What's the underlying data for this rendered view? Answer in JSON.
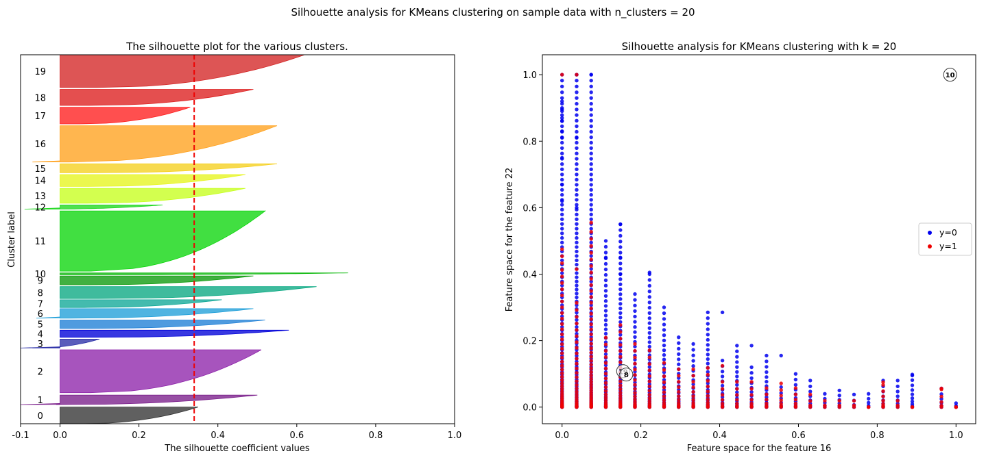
{
  "suptitle": "Silhouette analysis for KMeans clustering on sample data with n_clusters = 20",
  "chart_data": [
    {
      "type": "area",
      "title": "The silhouette plot for the various clusters.",
      "xlabel": "The silhouette coefficient values",
      "ylabel": "Cluster label",
      "xlim": [
        -0.1,
        1.0
      ],
      "xticks": [
        "-0.1",
        "0.0",
        "0.2",
        "0.4",
        "0.6",
        "0.8",
        "1.0"
      ],
      "average_silhouette": 0.34,
      "clusters": [
        {
          "label": "0",
          "y": [
            0,
            28
          ],
          "max": 0.35,
          "min": 0.0,
          "color": "#333333"
        },
        {
          "label": "1",
          "y": [
            32,
            48
          ],
          "max": 0.5,
          "min": -0.1,
          "color": "#7a1d8a"
        },
        {
          "label": "2",
          "y": [
            52,
            124
          ],
          "max": 0.51,
          "min": 0.0,
          "color": "#8e24aa"
        },
        {
          "label": "3",
          "y": [
            127,
            142
          ],
          "max": 0.1,
          "min": -0.1,
          "color": "#2b2fa8"
        },
        {
          "label": "4",
          "y": [
            145,
            157
          ],
          "max": 0.58,
          "min": 0.0,
          "color": "#0000d8"
        },
        {
          "label": "5",
          "y": [
            160,
            174
          ],
          "max": 0.52,
          "min": 0.0,
          "color": "#1e7fd6"
        },
        {
          "label": "6",
          "y": [
            177,
            193
          ],
          "max": 0.49,
          "min": -0.06,
          "color": "#1f9fd9"
        },
        {
          "label": "7",
          "y": [
            195,
            208
          ],
          "max": 0.41,
          "min": 0.0,
          "color": "#10a897"
        },
        {
          "label": "8",
          "y": [
            210,
            230
          ],
          "max": 0.65,
          "min": 0.0,
          "color": "#09a882"
        },
        {
          "label": "9",
          "y": [
            233,
            248
          ],
          "max": 0.49,
          "min": 0.0,
          "color": "#0b9a0b"
        },
        {
          "label": "10",
          "y": [
            250,
            253
          ],
          "max": 0.73,
          "min": 0.0,
          "color": "#0bb80b"
        },
        {
          "label": "11",
          "y": [
            256,
            357
          ],
          "max": 0.52,
          "min": 0.0,
          "color": "#0bd60b"
        },
        {
          "label": "12",
          "y": [
            360,
            367
          ],
          "max": 0.26,
          "min": -0.09,
          "color": "#1ed81e"
        },
        {
          "label": "13",
          "y": [
            370,
            395
          ],
          "max": 0.47,
          "min": 0.0,
          "color": "#c6ff1e"
        },
        {
          "label": "14",
          "y": [
            398,
            418
          ],
          "max": 0.47,
          "min": 0.0,
          "color": "#e6f51e"
        },
        {
          "label": "15",
          "y": [
            421,
            436
          ],
          "max": 0.55,
          "min": 0.0,
          "color": "#f5cf1e"
        },
        {
          "label": "16",
          "y": [
            439,
            500
          ],
          "max": 0.55,
          "min": -0.07,
          "color": "#ffa21e"
        },
        {
          "label": "17",
          "y": [
            503,
            531
          ],
          "max": 0.33,
          "min": 0.0,
          "color": "#ff1e1e"
        },
        {
          "label": "18",
          "y": [
            534,
            561
          ],
          "max": 0.49,
          "min": 0.0,
          "color": "#dd1e1e"
        },
        {
          "label": "19",
          "y": [
            564,
            619
          ],
          "max": 0.62,
          "min": 0.0,
          "color": "#d42525"
        }
      ]
    },
    {
      "type": "scatter",
      "title": "Silhouette analysis for KMeans clustering with k = 20",
      "xlabel": "Feature space for the feature 16",
      "ylabel": "Feature space for the feature 22",
      "xlim": [
        -0.05,
        1.05
      ],
      "ylim": [
        -0.05,
        1.06
      ],
      "xticks": [
        "0.0",
        "0.2",
        "0.4",
        "0.6",
        "0.8",
        "1.0"
      ],
      "yticks": [
        "0.0",
        "0.2",
        "0.4",
        "0.6",
        "0.8",
        "1.0"
      ],
      "legend_position": "center-right",
      "series": [
        {
          "name": "y=0",
          "color": "#0000ee"
        },
        {
          "name": "y=1",
          "color": "#ee0000"
        }
      ],
      "feature_x_levels": [
        0.0,
        0.037,
        0.074,
        0.111,
        0.148,
        0.185,
        0.222,
        0.259,
        0.296,
        0.333,
        0.37,
        0.407,
        0.444,
        0.481,
        0.519,
        0.556,
        0.593,
        0.63,
        0.667,
        0.704,
        0.741,
        0.778,
        0.815,
        0.852,
        0.889,
        0.963,
        1.0
      ],
      "column_max_blue": [
        1.0,
        1.0,
        1.0,
        0.5,
        0.55,
        0.34,
        0.4,
        0.3,
        0.21,
        0.19,
        0.285,
        0.14,
        0.185,
        0.12,
        0.155,
        0.06,
        0.1,
        0.08,
        0.04,
        0.05,
        0.038,
        0.04,
        0.08,
        0.08,
        0.098,
        0.056,
        0.012
      ],
      "column_max_red": [
        0.5,
        0.33,
        0.555,
        0.22,
        0.26,
        0.2,
        0.18,
        0.14,
        0.12,
        0.12,
        0.124,
        0.08,
        0.08,
        0.08,
        0.06,
        0.075,
        0.06,
        0.04,
        0.02,
        0.02,
        0.02,
        0.0,
        0.07,
        0.02,
        0.0,
        0.056,
        0.0
      ],
      "extra_blue_points": [
        [
          0.0,
          0.62
        ],
        [
          0.0,
          0.67
        ],
        [
          0.0,
          0.75
        ],
        [
          0.0,
          0.81
        ],
        [
          0.0,
          0.83
        ],
        [
          0.0,
          0.86
        ],
        [
          0.0,
          0.87
        ],
        [
          0.0,
          0.89
        ],
        [
          0.0,
          0.9
        ],
        [
          0.0,
          0.92
        ],
        [
          0.037,
          1.0
        ],
        [
          0.074,
          1.0
        ],
        [
          0.037,
          0.81
        ],
        [
          0.037,
          0.6
        ],
        [
          0.148,
          0.55
        ],
        [
          0.148,
          0.45
        ],
        [
          0.111,
          0.45
        ],
        [
          0.148,
          0.4
        ],
        [
          0.222,
          0.405
        ],
        [
          0.407,
          0.285
        ],
        [
          0.481,
          0.185
        ],
        [
          0.556,
          0.155
        ],
        [
          0.889,
          0.095
        ]
      ],
      "extra_red_points": [
        [
          0.0,
          1.0
        ],
        [
          0.037,
          1.0
        ],
        [
          0.074,
          0.555
        ],
        [
          0.037,
          0.415
        ],
        [
          0.963,
          0.056
        ],
        [
          0.815,
          0.075
        ],
        [
          0.407,
          0.124
        ]
      ],
      "centers": [
        {
          "label": "10",
          "x": 0.985,
          "y": 1.0
        },
        {
          "label": "19",
          "x": 0.155,
          "y": 0.108
        },
        {
          "label": "8",
          "x": 0.163,
          "y": 0.098
        }
      ]
    }
  ]
}
